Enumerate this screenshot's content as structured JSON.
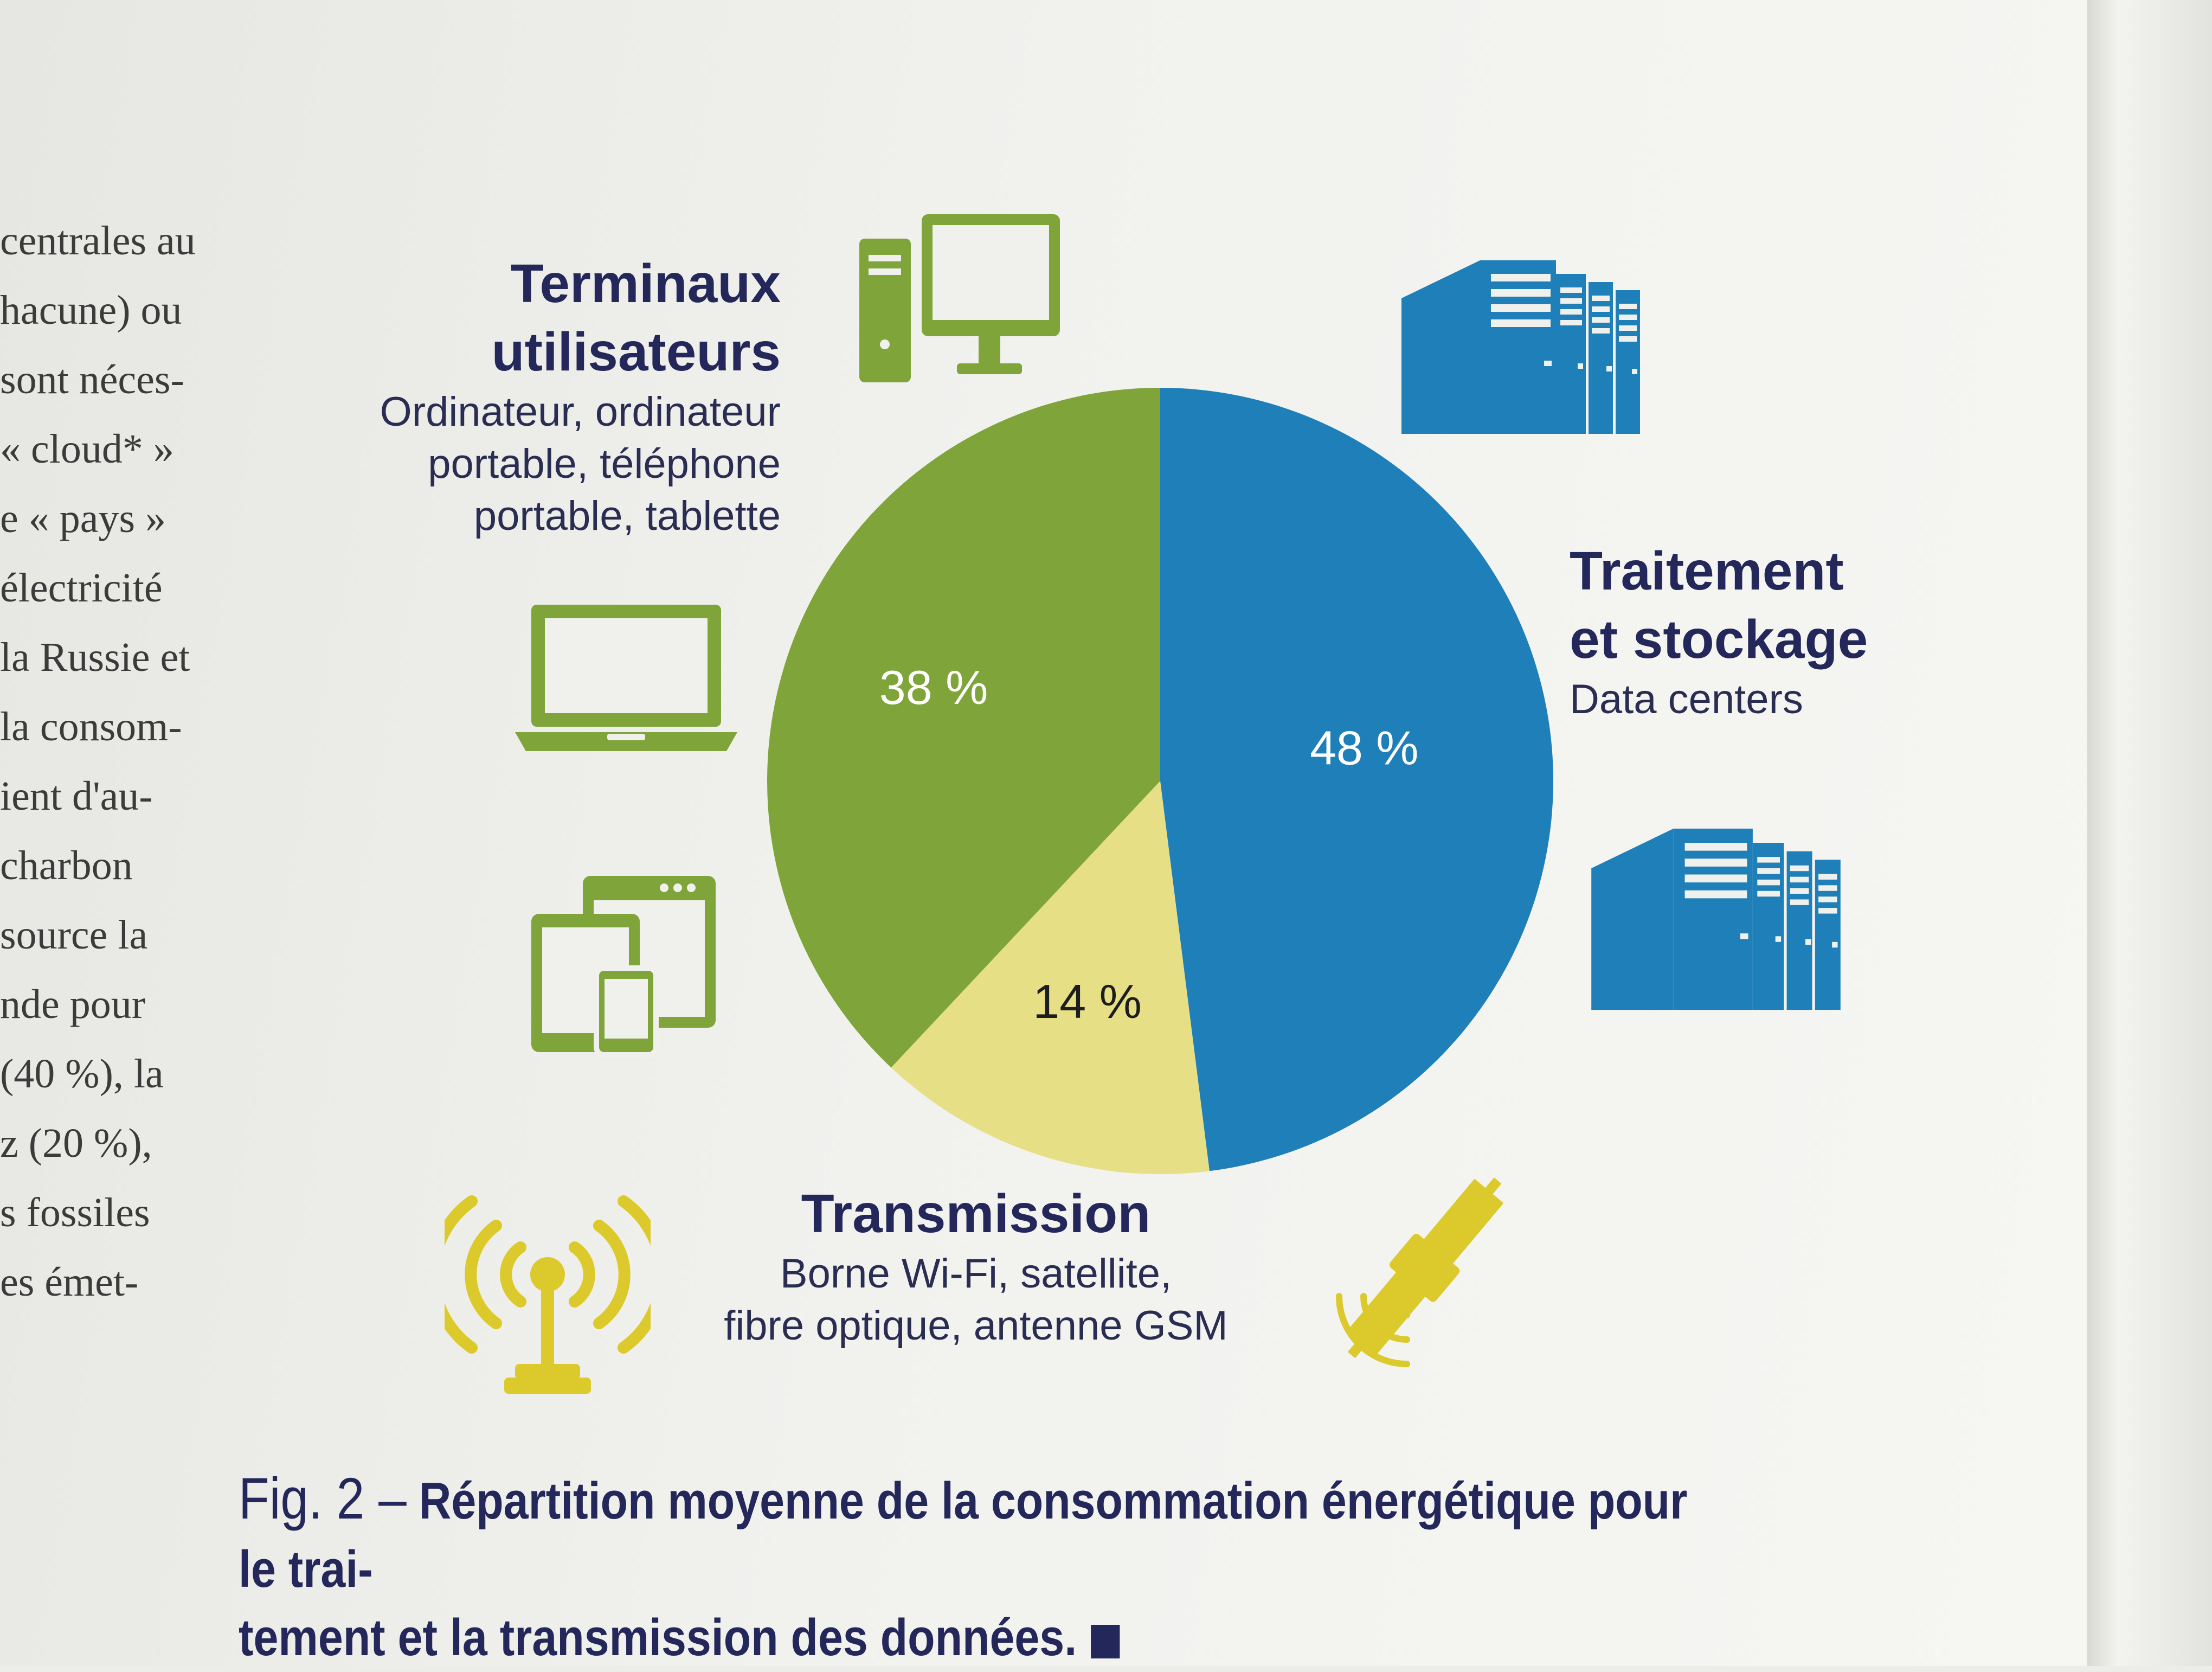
{
  "body_text": [
    "centrales au",
    "hacune) ou",
    "sont néces-",
    "« cloud* »",
    "e « pays »",
    "électricité",
    "la Russie et",
    "la consom-",
    "ient d'au-",
    "charbon",
    "source la",
    "nde pour",
    "(40 %), la",
    "z (20 %),",
    "s fossiles",
    "es émet-"
  ],
  "labels": {
    "terminaux": {
      "title_line1": "Terminaux",
      "title_line2": "utilisateurs",
      "sub_line1": "Ordinateur, ordinateur",
      "sub_line2": "portable, téléphone",
      "sub_line3": "portable, tablette"
    },
    "traitement": {
      "title_line1": "Traitement",
      "title_line2": "et stockage",
      "sub_line1": "Data centers"
    },
    "transmission": {
      "title_line1": "Transmission",
      "sub_line1": "Borne Wi-Fi, satellite,",
      "sub_line2": "fibre optique, antenne GSM"
    }
  },
  "caption": {
    "fig_number": "Fig. 2 –",
    "line1": "Répartition moyenne de la consommation énergétique pour le trai-",
    "line2": "tement et la transmission des données."
  },
  "icons": {
    "desktop": "desktop-computer-icon",
    "laptop": "laptop-icon",
    "tablet_phone": "tablet-phone-icon",
    "server1": "server-building-icon",
    "server2": "server-building-icon",
    "antenna": "antenna-icon",
    "satellite": "satellite-icon"
  },
  "colors": {
    "blue": "#1f7fb8",
    "green": "#7ea43a",
    "yellow": "#e7df86",
    "icon_yellow": "#dcc92b",
    "navy": "#23275a"
  },
  "chart_data": {
    "type": "pie",
    "title": "",
    "categories": [
      "Traitement et stockage",
      "Transmission",
      "Terminaux utilisateurs"
    ],
    "values": [
      48,
      14,
      38
    ],
    "value_labels": [
      "48 %",
      "14 %",
      "38 %"
    ],
    "colors": [
      "#1f7fb8",
      "#e7df86",
      "#7ea43a"
    ],
    "label_colors": [
      "#ffffff",
      "#1d1d1d",
      "#ffffff"
    ],
    "start_angle_deg": 0,
    "direction": "clockwise"
  }
}
